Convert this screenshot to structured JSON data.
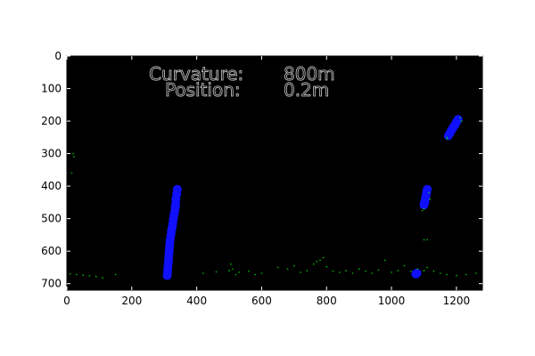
{
  "chart_data": {
    "type": "scatter",
    "title": "",
    "xlabel": "",
    "ylabel": "",
    "xlim": [
      0,
      1280
    ],
    "ylim": [
      720,
      0
    ],
    "x_ticks": [
      "0",
      "200",
      "400",
      "600",
      "800",
      "1000",
      "1200"
    ],
    "y_ticks": [
      "0",
      "100",
      "200",
      "300",
      "400",
      "500",
      "600",
      "700"
    ],
    "background_color": "#000000",
    "grid": false,
    "annotations": [
      {
        "label": "Curvature:",
        "value": "800m"
      },
      {
        "label": "Position:",
        "value": "0.2m"
      }
    ],
    "colors": {
      "lane_fit": "#1010ff",
      "detected_pixels": "#00d000",
      "annotation_text": "#c8c8c8"
    },
    "series": [
      {
        "color": "#1010ff",
        "marker": "filled-circle",
        "points": [
          [
            340,
            410
          ],
          [
            338,
            425
          ],
          [
            336,
            440
          ],
          [
            335,
            455
          ],
          [
            334,
            465
          ],
          [
            332,
            478
          ],
          [
            330,
            490
          ],
          [
            328,
            502
          ],
          [
            326,
            515
          ],
          [
            324,
            528
          ],
          [
            322,
            540
          ],
          [
            320,
            552
          ],
          [
            318,
            565
          ],
          [
            317,
            578
          ],
          [
            316,
            590
          ],
          [
            315,
            602
          ],
          [
            314,
            615
          ],
          [
            313,
            628
          ],
          [
            312,
            640
          ],
          [
            311,
            652
          ],
          [
            310,
            665
          ],
          [
            309,
            675
          ]
        ]
      },
      {
        "color": "#1010ff",
        "marker": "filled-circle",
        "points": [
          [
            1205,
            195
          ],
          [
            1200,
            203
          ],
          [
            1195,
            212
          ],
          [
            1190,
            220
          ],
          [
            1185,
            228
          ],
          [
            1180,
            237
          ],
          [
            1175,
            245
          ],
          [
            1110,
            410
          ],
          [
            1108,
            420
          ],
          [
            1106,
            430
          ],
          [
            1104,
            440
          ],
          [
            1102,
            450
          ],
          [
            1100,
            458
          ],
          [
            1078,
            668
          ],
          [
            1075,
            670
          ]
        ]
      },
      {
        "color": "#00d000",
        "marker": "dot",
        "points": [
          [
            10,
            670
          ],
          [
            30,
            672
          ],
          [
            50,
            674
          ],
          [
            70,
            676
          ],
          [
            90,
            678
          ],
          [
            110,
            682
          ],
          [
            150,
            672
          ],
          [
            20,
            300
          ],
          [
            22,
            310
          ],
          [
            15,
            360
          ],
          [
            420,
            668
          ],
          [
            460,
            664
          ],
          [
            500,
            660
          ],
          [
            505,
            640
          ],
          [
            510,
            655
          ],
          [
            520,
            672
          ],
          [
            530,
            665
          ],
          [
            560,
            662
          ],
          [
            580,
            672
          ],
          [
            600,
            668
          ],
          [
            650,
            650
          ],
          [
            680,
            655
          ],
          [
            700,
            645
          ],
          [
            720,
            665
          ],
          [
            740,
            660
          ],
          [
            760,
            640
          ],
          [
            770,
            632
          ],
          [
            780,
            628
          ],
          [
            790,
            620
          ],
          [
            800,
            648
          ],
          [
            820,
            662
          ],
          [
            840,
            665
          ],
          [
            860,
            660
          ],
          [
            880,
            668
          ],
          [
            900,
            655
          ],
          [
            920,
            662
          ],
          [
            940,
            668
          ],
          [
            960,
            658
          ],
          [
            980,
            628
          ],
          [
            1000,
            665
          ],
          [
            1020,
            660
          ],
          [
            1040,
            645
          ],
          [
            1060,
            662
          ],
          [
            1080,
            655
          ],
          [
            1100,
            660
          ],
          [
            1110,
            650
          ],
          [
            1130,
            662
          ],
          [
            1150,
            668
          ],
          [
            1170,
            672
          ],
          [
            1200,
            675
          ],
          [
            1230,
            672
          ],
          [
            1260,
            668
          ],
          [
            1100,
            470
          ],
          [
            1095,
            475
          ],
          [
            1115,
            420
          ],
          [
            1118,
            440
          ],
          [
            1100,
            565
          ],
          [
            1110,
            565
          ],
          [
            1212,
            190
          ],
          [
            1215,
            200
          ],
          [
            1170,
            250
          ],
          [
            1172,
            255
          ]
        ]
      }
    ]
  }
}
